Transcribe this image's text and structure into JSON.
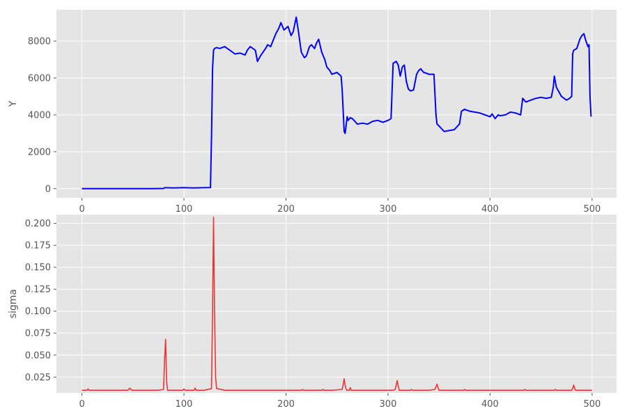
{
  "chart_data": [
    {
      "type": "line",
      "title": "",
      "xlabel": "",
      "ylabel": "Y",
      "xlim": [
        -25,
        524
      ],
      "ylim": [
        -500,
        9700
      ],
      "xticks": [
        0,
        100,
        200,
        300,
        400,
        500
      ],
      "xtick_labels": [
        "0",
        "100",
        "200",
        "300",
        "400",
        "500"
      ],
      "yticks": [
        0,
        2000,
        4000,
        6000,
        8000
      ],
      "ytick_labels": [
        "0",
        "2000",
        "4000",
        "6000",
        "8000"
      ],
      "grid": true,
      "color": "#0000ff",
      "series": [
        {
          "x": [
            0,
            10,
            20,
            30,
            40,
            50,
            60,
            70,
            80,
            81,
            90,
            100,
            110,
            120,
            126,
            127,
            128,
            129,
            130,
            132,
            135,
            140,
            145,
            150,
            155,
            160,
            162,
            165,
            170,
            172,
            175,
            180,
            182,
            185,
            190,
            193,
            195,
            198,
            200,
            202,
            205,
            207,
            210,
            212,
            215,
            218,
            220,
            223,
            225,
            228,
            230,
            232,
            235,
            238,
            240,
            243,
            245,
            250,
            254,
            255,
            257,
            258,
            260,
            261,
            263,
            265,
            270,
            275,
            280,
            285,
            290,
            295,
            300,
            303,
            305,
            308,
            310,
            312,
            314,
            316,
            318,
            320,
            322,
            325,
            328,
            330,
            332,
            335,
            338,
            340,
            345,
            347,
            348,
            350,
            355,
            360,
            365,
            370,
            372,
            375,
            380,
            385,
            390,
            395,
            400,
            402,
            405,
            408,
            410,
            415,
            420,
            425,
            430,
            432,
            435,
            440,
            445,
            450,
            455,
            460,
            462,
            463,
            465,
            470,
            475,
            478,
            480,
            481,
            482,
            485,
            488,
            490,
            492,
            494,
            496,
            497,
            498,
            499
          ],
          "y": [
            0,
            0,
            0,
            0,
            0,
            0,
            0,
            0,
            10,
            50,
            40,
            50,
            40,
            50,
            60,
            2800,
            6500,
            7500,
            7600,
            7650,
            7600,
            7700,
            7500,
            7300,
            7350,
            7250,
            7500,
            7700,
            7500,
            6900,
            7200,
            7600,
            7800,
            7700,
            8400,
            8700,
            9000,
            8600,
            8700,
            8800,
            8300,
            8500,
            9300,
            8600,
            7400,
            7100,
            7200,
            7700,
            7800,
            7600,
            7900,
            8100,
            7400,
            7000,
            6600,
            6400,
            6200,
            6300,
            6100,
            5400,
            3100,
            3000,
            3900,
            3700,
            3850,
            3800,
            3500,
            3550,
            3500,
            3650,
            3700,
            3600,
            3700,
            3800,
            6800,
            6900,
            6700,
            6100,
            6600,
            6700,
            5800,
            5400,
            5300,
            5350,
            6200,
            6400,
            6500,
            6300,
            6250,
            6200,
            6200,
            4000,
            3500,
            3400,
            3100,
            3150,
            3200,
            3500,
            4200,
            4300,
            4200,
            4150,
            4100,
            4000,
            3900,
            4050,
            3800,
            4000,
            3950,
            4000,
            4150,
            4100,
            4000,
            4900,
            4700,
            4800,
            4900,
            4950,
            4900,
            4950,
            5500,
            6100,
            5500,
            5000,
            4800,
            4900,
            5000,
            7300,
            7500,
            7600,
            8100,
            8300,
            8400,
            8000,
            7700,
            7800,
            5000,
            3900
          ]
        }
      ]
    },
    {
      "type": "line",
      "title": "",
      "xlabel": "",
      "ylabel": "sigma",
      "xlim": [
        -25,
        524
      ],
      "ylim": [
        0.007,
        0.21
      ],
      "xticks": [
        0,
        100,
        200,
        300,
        400,
        500
      ],
      "xtick_labels": [
        "0",
        "100",
        "200",
        "300",
        "400",
        "500"
      ],
      "yticks": [
        0.025,
        0.05,
        0.075,
        0.1,
        0.125,
        0.15,
        0.175,
        0.2
      ],
      "ytick_labels": [
        "0.025",
        "0.050",
        "0.075",
        "0.100",
        "0.125",
        "0.150",
        "0.175",
        "0.200"
      ],
      "grid": true,
      "color": "#ee3333",
      "series": [
        {
          "x": [
            0,
            5,
            6,
            7,
            10,
            20,
            30,
            45,
            47,
            49,
            55,
            65,
            75,
            80,
            81,
            82,
            83,
            84,
            90,
            99,
            100,
            101,
            110,
            111,
            112,
            120,
            127,
            128,
            129,
            130,
            131,
            132,
            140,
            150,
            160,
            170,
            180,
            190,
            200,
            210,
            215,
            216,
            217,
            225,
            235,
            236,
            237,
            245,
            255,
            256,
            257,
            258,
            259,
            260,
            262,
            263,
            264,
            266,
            275,
            285,
            295,
            305,
            307,
            308,
            309,
            310,
            311,
            315,
            322,
            323,
            324,
            330,
            340,
            346,
            347,
            348,
            349,
            350,
            360,
            370,
            374,
            375,
            376,
            385,
            395,
            405,
            415,
            425,
            433,
            434,
            435,
            445,
            455,
            463,
            464,
            465,
            470,
            475,
            480,
            481,
            482,
            483,
            484,
            490,
            500
          ],
          "y": [
            0.01,
            0.01,
            0.0115,
            0.01,
            0.01,
            0.01,
            0.01,
            0.01,
            0.0125,
            0.01,
            0.01,
            0.01,
            0.01,
            0.011,
            0.045,
            0.068,
            0.02,
            0.01,
            0.01,
            0.01,
            0.0115,
            0.01,
            0.01,
            0.0125,
            0.01,
            0.01,
            0.012,
            0.1,
            0.207,
            0.1,
            0.025,
            0.012,
            0.01,
            0.01,
            0.01,
            0.01,
            0.01,
            0.01,
            0.01,
            0.01,
            0.01,
            0.011,
            0.01,
            0.01,
            0.01,
            0.011,
            0.01,
            0.01,
            0.011,
            0.016,
            0.023,
            0.016,
            0.011,
            0.01,
            0.01,
            0.013,
            0.01,
            0.01,
            0.01,
            0.01,
            0.01,
            0.01,
            0.011,
            0.016,
            0.021,
            0.015,
            0.01,
            0.01,
            0.01,
            0.011,
            0.01,
            0.01,
            0.01,
            0.011,
            0.014,
            0.017,
            0.013,
            0.01,
            0.01,
            0.01,
            0.01,
            0.011,
            0.01,
            0.01,
            0.01,
            0.01,
            0.01,
            0.01,
            0.01,
            0.011,
            0.01,
            0.01,
            0.01,
            0.01,
            0.011,
            0.01,
            0.01,
            0.01,
            0.01,
            0.012,
            0.016,
            0.012,
            0.01,
            0.01,
            0.01
          ]
        }
      ]
    }
  ]
}
